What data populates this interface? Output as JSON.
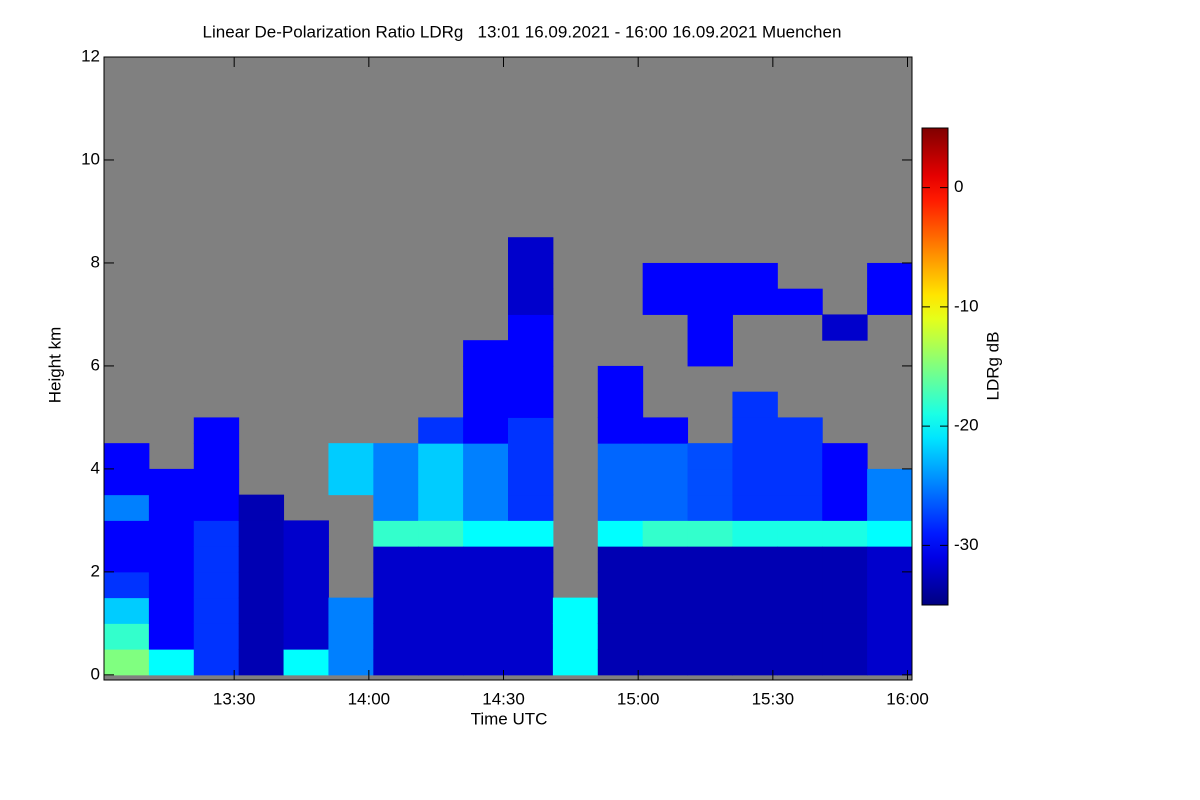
{
  "chart_data": {
    "type": "heatmap",
    "title": "Linear De-Polarization Ratio LDRg   13:01 16.09.2021 - 16:00 16.09.2021 Muenchen",
    "xlabel": "Time UTC",
    "ylabel": "Height km",
    "xlim": [
      781,
      961
    ],
    "ylim": [
      -0.1,
      12
    ],
    "xticks": [
      {
        "value": 810,
        "label": "13:30"
      },
      {
        "value": 840,
        "label": "14:00"
      },
      {
        "value": 870,
        "label": "14:30"
      },
      {
        "value": 900,
        "label": "15:00"
      },
      {
        "value": 930,
        "label": "15:30"
      },
      {
        "value": 960,
        "label": "16:00"
      }
    ],
    "yticks": [
      0,
      2,
      4,
      6,
      8,
      10,
      12
    ],
    "background": "#808080",
    "xbins": [
      781,
      791,
      801,
      811,
      821,
      831,
      841,
      851,
      861,
      871,
      881,
      891,
      901,
      911,
      921,
      931,
      941,
      951,
      961
    ],
    "ybins": [
      0,
      0.5,
      1,
      1.5,
      2,
      2.5,
      3,
      3.5,
      4,
      4.5,
      5,
      5.5,
      6,
      6.5,
      7,
      7.5,
      8,
      8.5,
      9
    ],
    "z": [
      [
        -15,
        -18,
        -22,
        -28,
        -30,
        -30,
        -25,
        -30,
        -30,
        null,
        null,
        null,
        null,
        null,
        null,
        null,
        null,
        null
      ],
      [
        -20,
        -30,
        -30,
        -30,
        -30,
        -30,
        -30,
        -30,
        null,
        null,
        null,
        null,
        null,
        null,
        null,
        null,
        null,
        null
      ],
      [
        -28,
        -28,
        -28,
        -28,
        -28,
        -28,
        -30,
        -30,
        -30,
        -30,
        null,
        null,
        null,
        null,
        null,
        null,
        null,
        null
      ],
      [
        -33,
        -33,
        -33,
        -33,
        -33,
        -33,
        -33,
        null,
        null,
        null,
        null,
        null,
        null,
        null,
        null,
        null,
        null,
        null
      ],
      [
        -20,
        -32,
        -32,
        -32,
        -32,
        -32,
        null,
        null,
        null,
        null,
        null,
        null,
        null,
        null,
        null,
        null,
        null,
        null
      ],
      [
        -25,
        -25,
        -25,
        null,
        null,
        null,
        null,
        -22,
        -22,
        null,
        null,
        null,
        null,
        null,
        null,
        null,
        null,
        null
      ],
      [
        -32,
        -32,
        -32,
        -32,
        -32,
        -18,
        -25,
        -25,
        -25,
        null,
        null,
        null,
        null,
        null,
        null,
        null,
        null,
        null
      ],
      [
        -32,
        -32,
        -32,
        -32,
        -32,
        -18,
        -22,
        -22,
        -22,
        -28,
        null,
        null,
        null,
        null,
        null,
        null,
        null,
        null
      ],
      [
        -32,
        -32,
        -32,
        -32,
        -32,
        -20,
        -25,
        -25,
        -25,
        -30,
        -30,
        -30,
        -30,
        null,
        null,
        null,
        null,
        null
      ],
      [
        -32,
        -32,
        -32,
        -32,
        -32,
        -20,
        -28,
        -28,
        -28,
        -28,
        -30,
        -30,
        -30,
        -30,
        -32,
        -32,
        -32,
        null
      ],
      [
        -20,
        -20,
        -20,
        null,
        null,
        null,
        null,
        null,
        null,
        null,
        null,
        null,
        null,
        null,
        null,
        null,
        null,
        null
      ],
      [
        -33,
        -33,
        -33,
        -33,
        -33,
        -20,
        -26,
        -26,
        -26,
        -30,
        -30,
        -30,
        null,
        null,
        null,
        null,
        null,
        null
      ],
      [
        -33,
        -33,
        -33,
        -33,
        -33,
        -18,
        -26,
        -26,
        -26,
        -30,
        null,
        null,
        null,
        null,
        -30,
        -30,
        null,
        null
      ],
      [
        -33,
        -33,
        -33,
        -33,
        -33,
        -18,
        -27,
        -27,
        -27,
        null,
        null,
        null,
        -30,
        -30,
        -30,
        -30,
        null,
        null
      ],
      [
        -33,
        -33,
        -33,
        -33,
        -33,
        -19,
        -28,
        -28,
        -28,
        -28,
        -28,
        null,
        null,
        null,
        -30,
        -30,
        null,
        null
      ],
      [
        -33,
        -33,
        -33,
        -33,
        -33,
        -19,
        -28,
        -28,
        -28,
        -28,
        null,
        null,
        null,
        null,
        -30,
        null,
        null,
        null
      ],
      [
        -33,
        -33,
        -33,
        -33,
        -33,
        -19,
        -30,
        -30,
        -30,
        null,
        null,
        null,
        null,
        -32,
        null,
        null,
        null,
        null
      ],
      [
        -32,
        -32,
        -32,
        -32,
        -32,
        -20,
        -25,
        -25,
        null,
        null,
        null,
        null,
        null,
        null,
        -30,
        -30,
        null,
        null
      ]
    ],
    "colorbar": {
      "label": "LDRg dB",
      "colormap": "jet",
      "lim": [
        -35,
        5
      ],
      "ticks": [
        0,
        -10,
        -20,
        -30
      ]
    }
  }
}
